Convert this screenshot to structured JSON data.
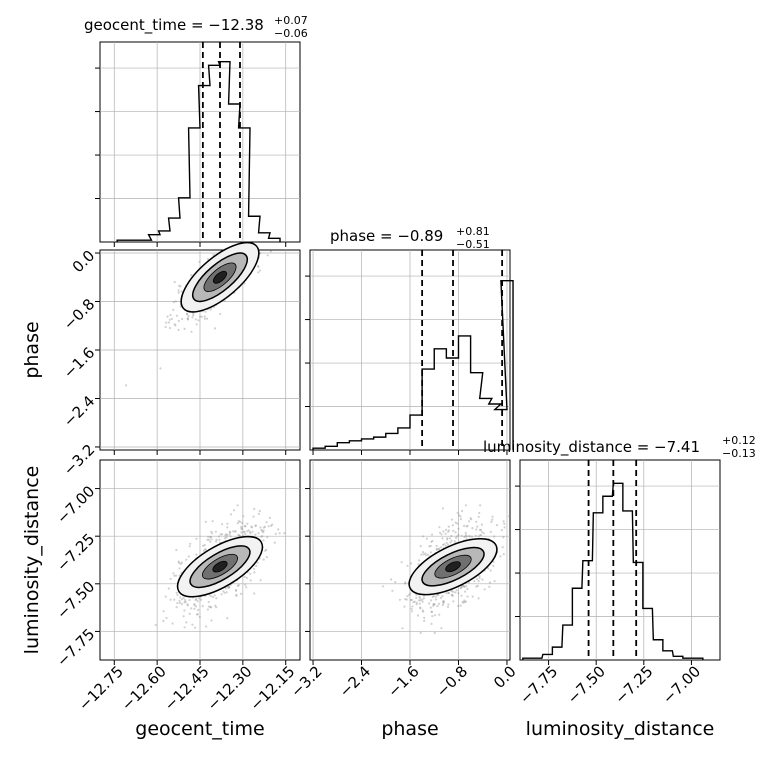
{
  "chart_data": {
    "type": "corner",
    "parameters": [
      {
        "name": "geocent_time",
        "range": [
          -12.8,
          -12.1
        ],
        "ticks": [
          -12.75,
          -12.6,
          -12.45,
          -12.3,
          -12.15
        ],
        "tick_labels": [
          "−12.75",
          "−12.60",
          "−12.45",
          "−12.30",
          "−12.15"
        ],
        "title": {
          "text": "geocent_time = −12.38",
          "upper": "+0.07",
          "lower": "−0.06"
        },
        "quantiles": [
          -12.44,
          -12.38,
          -12.31
        ],
        "hist": [
          {
            "x": -12.72,
            "y": 0.01
          },
          {
            "x": -12.68,
            "y": 0.01
          },
          {
            "x": -12.64,
            "y": 0.01
          },
          {
            "x": -12.61,
            "y": 0.04
          },
          {
            "x": -12.575,
            "y": 0.06
          },
          {
            "x": -12.54,
            "y": 0.13
          },
          {
            "x": -12.505,
            "y": 0.24
          },
          {
            "x": -12.47,
            "y": 0.62
          },
          {
            "x": -12.435,
            "y": 0.85
          },
          {
            "x": -12.4,
            "y": 0.96
          },
          {
            "x": -12.365,
            "y": 0.98
          },
          {
            "x": -12.33,
            "y": 0.75
          },
          {
            "x": -12.295,
            "y": 0.62
          },
          {
            "x": -12.26,
            "y": 0.14
          },
          {
            "x": -12.225,
            "y": 0.05
          },
          {
            "x": -12.19,
            "y": 0.02
          }
        ]
      },
      {
        "name": "phase",
        "range": [
          -3.25,
          0.05
        ],
        "ticks": [
          -3.2,
          -2.4,
          -1.6,
          -0.8,
          0.0
        ],
        "tick_labels": [
          "−3.2",
          "−2.4",
          "−1.6",
          "−0.8",
          "0.0"
        ],
        "title": {
          "text": "phase = −0.89",
          "upper": "+0.81",
          "lower": "−0.51"
        },
        "quantiles": [
          -1.4,
          -0.89,
          -0.08
        ],
        "hist": [
          {
            "x": -3.1,
            "y": 0.01
          },
          {
            "x": -2.9,
            "y": 0.02
          },
          {
            "x": -2.7,
            "y": 0.04
          },
          {
            "x": -2.5,
            "y": 0.05
          },
          {
            "x": -2.3,
            "y": 0.06
          },
          {
            "x": -2.1,
            "y": 0.07
          },
          {
            "x": -1.9,
            "y": 0.09
          },
          {
            "x": -1.7,
            "y": 0.12
          },
          {
            "x": -1.5,
            "y": 0.19
          },
          {
            "x": -1.3,
            "y": 0.44
          },
          {
            "x": -1.1,
            "y": 0.55
          },
          {
            "x": -0.9,
            "y": 0.5
          },
          {
            "x": -0.7,
            "y": 0.62
          },
          {
            "x": -0.5,
            "y": 0.42
          },
          {
            "x": -0.35,
            "y": 0.28
          },
          {
            "x": -0.2,
            "y": 0.25
          },
          {
            "x": -0.1,
            "y": 0.22
          },
          {
            "x": 0.0,
            "y": 0.92
          }
        ]
      },
      {
        "name": "luminosity_distance",
        "range": [
          -7.9,
          -6.85
        ],
        "ticks": [
          -7.75,
          -7.5,
          -7.25,
          -7.0
        ],
        "tick_labels": [
          "−7.75",
          "−7.50",
          "−7.25",
          "−7.00"
        ],
        "title": {
          "text": "luminosity_distance = −7.41",
          "upper": "+0.12",
          "lower": "−0.13"
        },
        "quantiles": [
          -7.54,
          -7.41,
          -7.29
        ],
        "hist": [
          {
            "x": -7.86,
            "y": 0.01
          },
          {
            "x": -7.81,
            "y": 0.01
          },
          {
            "x": -7.755,
            "y": 0.03
          },
          {
            "x": -7.705,
            "y": 0.07
          },
          {
            "x": -7.65,
            "y": 0.19
          },
          {
            "x": -7.6,
            "y": 0.39
          },
          {
            "x": -7.545,
            "y": 0.54
          },
          {
            "x": -7.49,
            "y": 0.8
          },
          {
            "x": -7.44,
            "y": 0.89
          },
          {
            "x": -7.385,
            "y": 0.96
          },
          {
            "x": -7.335,
            "y": 0.81
          },
          {
            "x": -7.28,
            "y": 0.53
          },
          {
            "x": -7.23,
            "y": 0.28
          },
          {
            "x": -7.175,
            "y": 0.11
          },
          {
            "x": -7.125,
            "y": 0.05
          },
          {
            "x": -7.07,
            "y": 0.02
          },
          {
            "x": -7.02,
            "y": 0.01
          },
          {
            "x": -6.965,
            "y": 0.01
          }
        ]
      }
    ],
    "joint": {
      "geocent_time__phase": {
        "correlation": 0.85,
        "mode": {
          "x": -12.38,
          "y": -0.4
        }
      },
      "geocent_time__luminosity_distance": {
        "correlation": 0.6,
        "mode": {
          "x": -12.38,
          "y": -7.41
        }
      },
      "phase__luminosity_distance": {
        "correlation": 0.5,
        "mode": {
          "x": -0.89,
          "y": -7.41
        }
      }
    },
    "grid": true,
    "colors": {
      "line": "#000000",
      "grid": "#b0b0b0",
      "points": "#999999"
    }
  }
}
